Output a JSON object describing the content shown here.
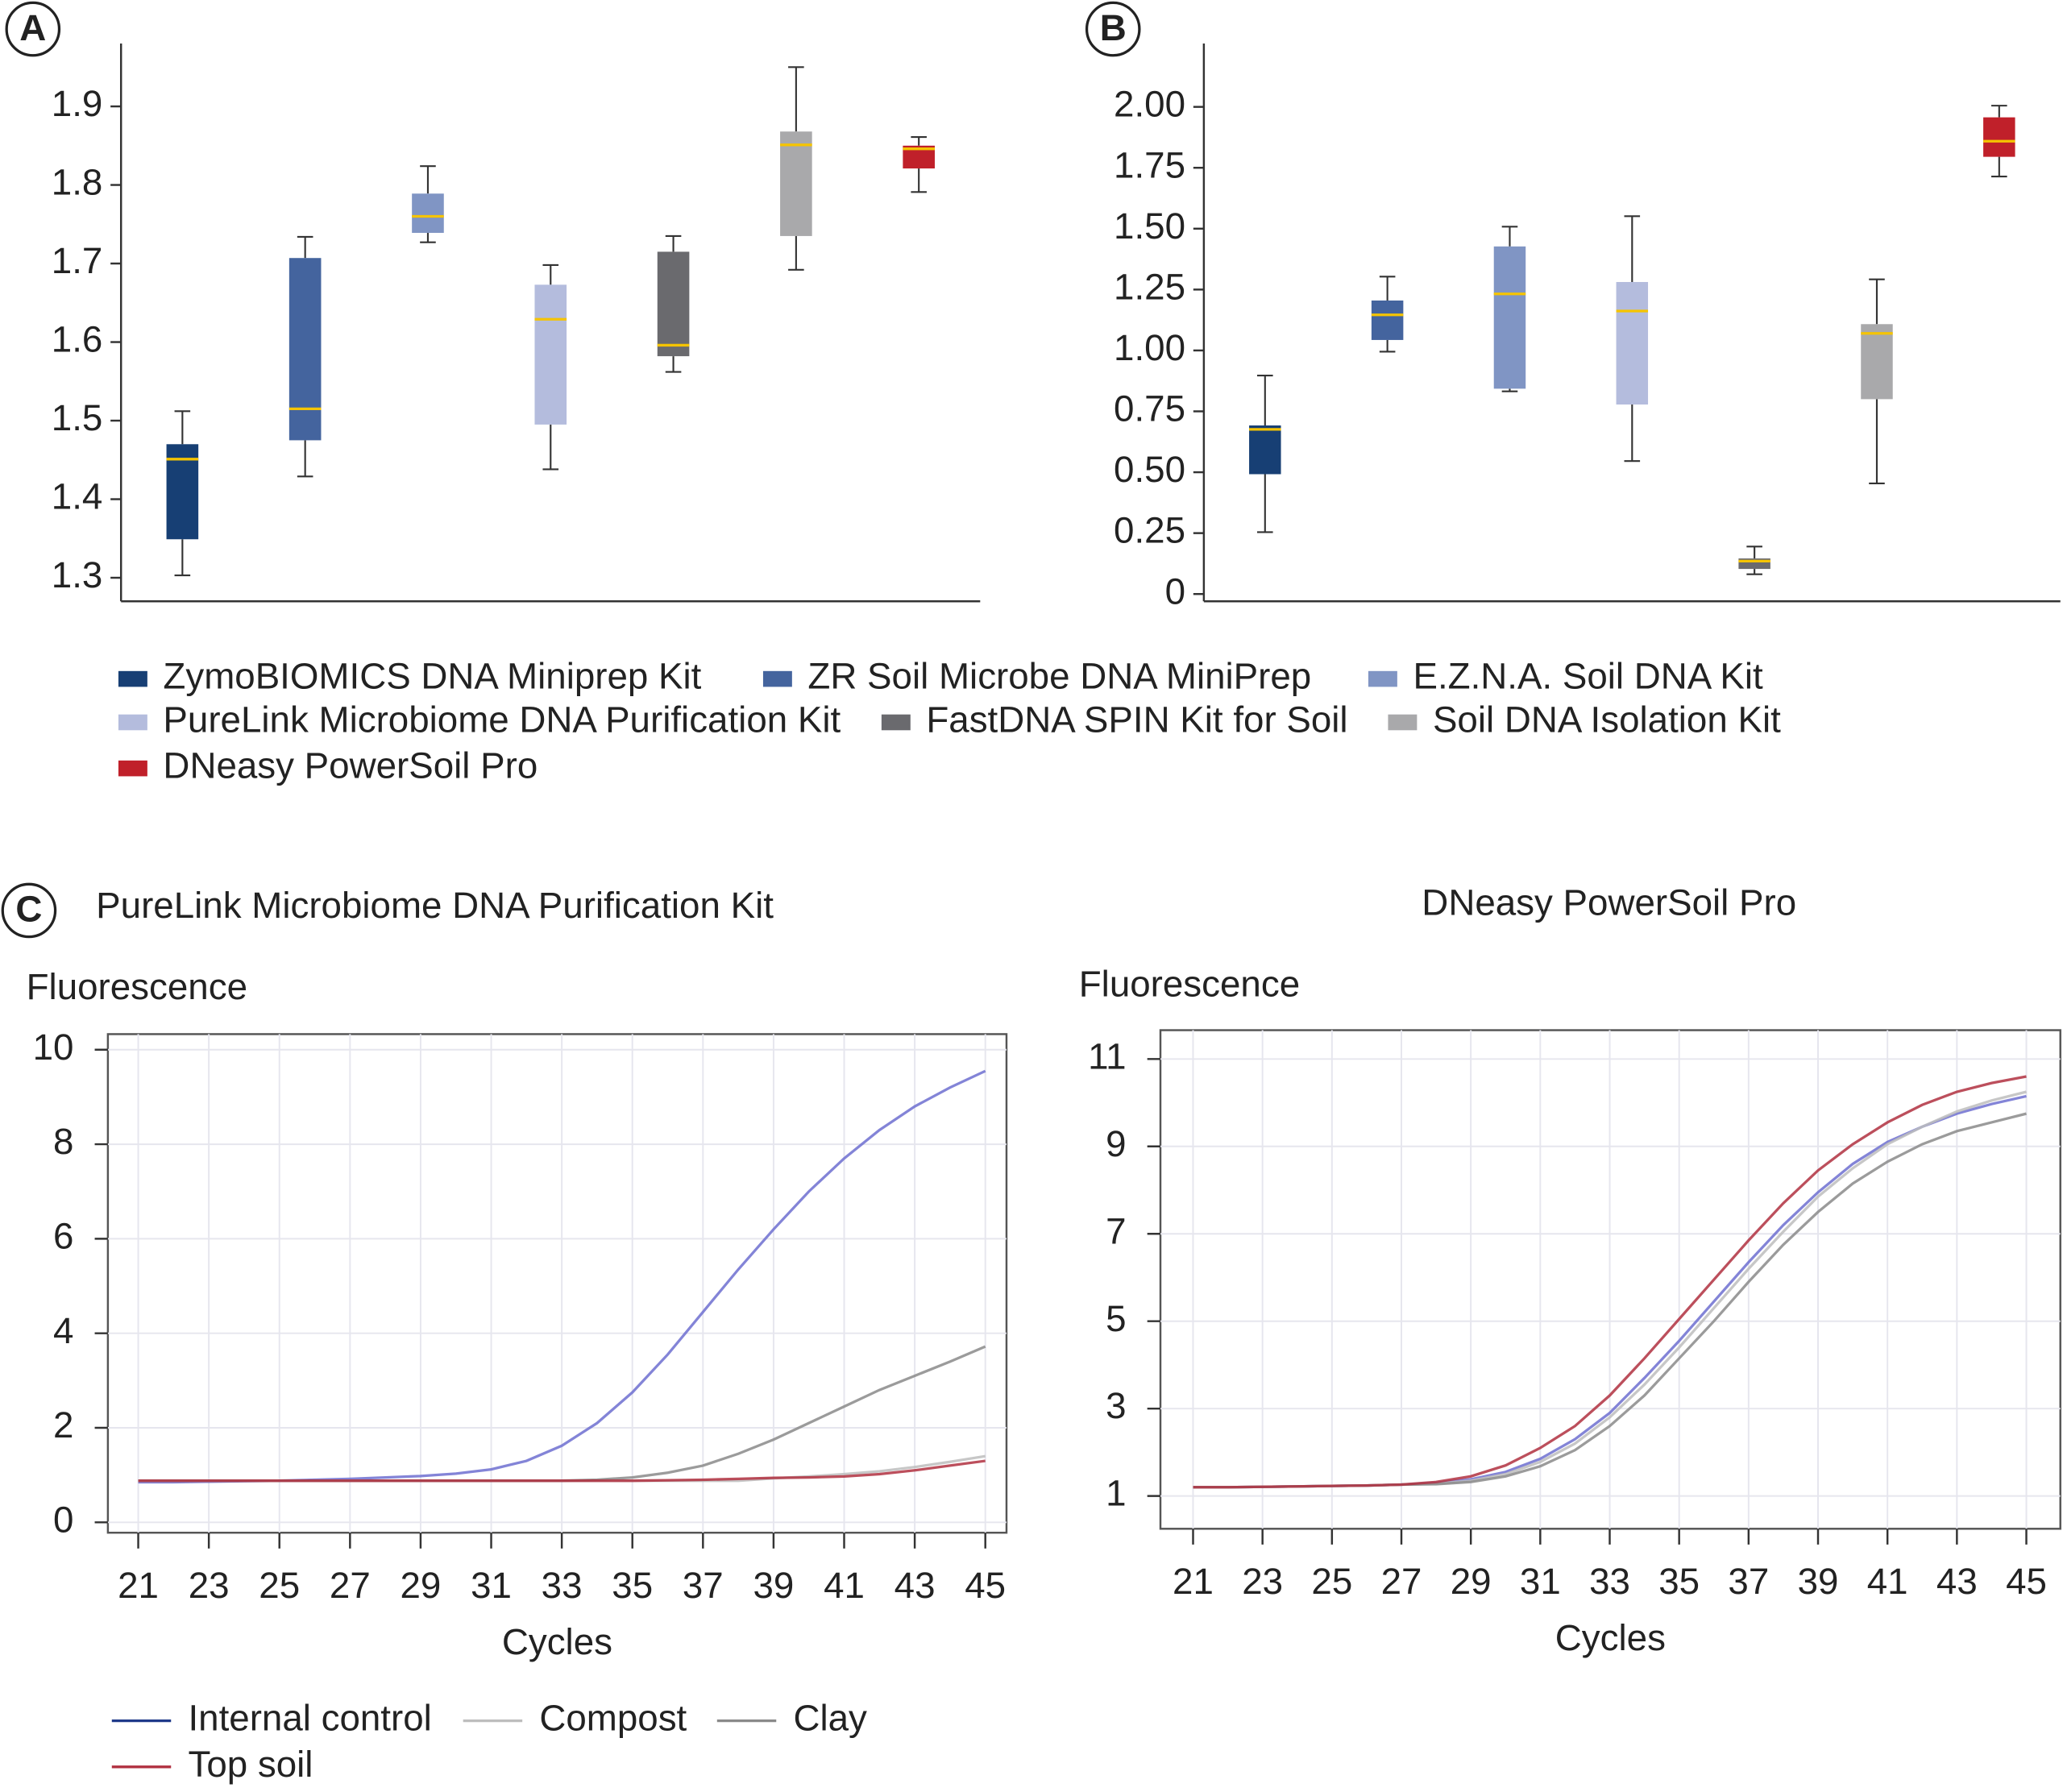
{
  "chart_data": [
    {
      "type": "box",
      "panel": "A",
      "ylim": [
        1.27,
        1.98
      ],
      "yticks": [
        1.3,
        1.4,
        1.5,
        1.6,
        1.7,
        1.8,
        1.9
      ],
      "median_color": "#f5c400",
      "series": [
        {
          "name": "ZymoBIOMICS DNA Miniprep Kit",
          "color": "#173f74",
          "min": 1.303,
          "q1": 1.349,
          "median": 1.451,
          "q3": 1.47,
          "max": 1.512
        },
        {
          "name": "ZR Soil Microbe DNA MiniPrep",
          "color": "#44649e",
          "min": 1.429,
          "q1": 1.475,
          "median": 1.515,
          "q3": 1.707,
          "max": 1.734
        },
        {
          "name": "E.Z.N.A. Soil DNA Kit",
          "color": "#8095c4",
          "min": 1.727,
          "q1": 1.739,
          "median": 1.76,
          "q3": 1.789,
          "max": 1.824
        },
        {
          "name": "PureLink Microbiome DNA Purification Kit",
          "color": "#b4bcdd",
          "min": 1.438,
          "q1": 1.495,
          "median": 1.629,
          "q3": 1.673,
          "max": 1.698
        },
        {
          "name": "FastDNA SPIN Kit for Soil",
          "color": "#6a6a6e",
          "min": 1.562,
          "q1": 1.582,
          "median": 1.596,
          "q3": 1.715,
          "max": 1.735
        },
        {
          "name": "Soil DNA Isolation Kit",
          "color": "#a9a9ab",
          "min": 1.692,
          "q1": 1.735,
          "median": 1.851,
          "q3": 1.868,
          "max": 1.95
        },
        {
          "name": "DNeasy PowerSoil Pro",
          "color": "#c0202a",
          "min": 1.791,
          "q1": 1.821,
          "median": 1.846,
          "q3": 1.85,
          "max": 1.861
        }
      ]
    },
    {
      "type": "box",
      "panel": "B",
      "ylim": [
        -0.03,
        2.26
      ],
      "yticks": [
        0,
        0.25,
        {
          "value": 0.5,
          "label": "0.50"
        },
        0.75,
        {
          "value": 1,
          "label": "1.00"
        },
        1.25,
        {
          "value": 1.5,
          "label": "1.50"
        },
        1.75,
        {
          "value": 2,
          "label": "2.00"
        }
      ],
      "median_color": "#f5c400",
      "series": [
        {
          "color": "#173f74",
          "min": 0.254,
          "q1": 0.492,
          "median": 0.676,
          "q3": 0.692,
          "max": 0.897
        },
        {
          "color": "#44649e",
          "min": 0.995,
          "q1": 1.043,
          "median": 1.146,
          "q3": 1.205,
          "max": 1.303
        },
        {
          "color": "#8095c4",
          "min": 0.832,
          "q1": 0.843,
          "median": 1.232,
          "q3": 1.427,
          "max": 1.508
        },
        {
          "color": "#b4bcdd",
          "min": 0.546,
          "q1": 0.778,
          "median": 1.162,
          "q3": 1.281,
          "max": 1.551
        },
        {
          "color": "#6a6a6e",
          "min": 0.081,
          "q1": 0.103,
          "median": 0.135,
          "q3": 0.146,
          "max": 0.195
        },
        {
          "color": "#a9a9ab",
          "min": 0.454,
          "q1": 0.8,
          "median": 1.07,
          "q3": 1.108,
          "max": 1.292
        },
        {
          "color": "#c0202a",
          "min": 1.714,
          "q1": 1.795,
          "median": 1.859,
          "q3": 1.957,
          "max": 2.005
        }
      ]
    },
    {
      "type": "line",
      "panel": "C",
      "title": "PureLink Microbiome DNA Purification Kit",
      "ylabel": "Fluorescence",
      "xlabel": "Cycles",
      "xlim": [
        20.14,
        45.6
      ],
      "ylim": [
        -0.22,
        10.33
      ],
      "xticks": [
        21,
        23,
        25,
        27,
        29,
        31,
        33,
        35,
        37,
        39,
        41,
        43,
        45
      ],
      "yticks": [
        0,
        2,
        4,
        6,
        8,
        10
      ],
      "grid": true,
      "x": [
        21,
        22,
        23,
        24,
        25,
        26,
        27,
        28,
        29,
        30,
        31,
        32,
        33,
        34,
        35,
        36,
        37,
        38,
        39,
        40,
        41,
        42,
        43,
        44,
        45
      ],
      "series": [
        {
          "name": "Internal control",
          "color": "#6d6fd0",
          "values": [
            0.85,
            0.85,
            0.86,
            0.87,
            0.88,
            0.9,
            0.92,
            0.95,
            0.98,
            1.03,
            1.12,
            1.3,
            1.62,
            2.1,
            2.75,
            3.55,
            4.45,
            5.35,
            6.2,
            7.0,
            7.7,
            8.3,
            8.8,
            9.2,
            9.55
          ]
        },
        {
          "name": "Compost",
          "color": "#bdbdbd",
          "values": [
            0.88,
            0.88,
            0.88,
            0.88,
            0.88,
            0.88,
            0.88,
            0.88,
            0.88,
            0.88,
            0.88,
            0.88,
            0.88,
            0.88,
            0.88,
            0.88,
            0.88,
            0.88,
            0.93,
            0.97,
            1.02,
            1.08,
            1.17,
            1.28,
            1.4
          ]
        },
        {
          "name": "Clay",
          "color": "#8a8a8a",
          "values": [
            0.88,
            0.88,
            0.88,
            0.88,
            0.88,
            0.88,
            0.88,
            0.88,
            0.88,
            0.88,
            0.88,
            0.88,
            0.88,
            0.9,
            0.95,
            1.05,
            1.2,
            1.45,
            1.75,
            2.1,
            2.45,
            2.8,
            3.1,
            3.4,
            3.72
          ]
        },
        {
          "name": "Top soil",
          "color": "#b03040",
          "values": [
            0.88,
            0.88,
            0.88,
            0.88,
            0.88,
            0.88,
            0.88,
            0.88,
            0.88,
            0.88,
            0.88,
            0.88,
            0.88,
            0.88,
            0.88,
            0.89,
            0.9,
            0.92,
            0.94,
            0.95,
            0.97,
            1.02,
            1.1,
            1.2,
            1.3
          ]
        }
      ]
    },
    {
      "type": "line",
      "title": "DNeasy PowerSoil Pro",
      "ylabel": "Fluorescence",
      "xlabel": "Cycles",
      "xlim": [
        20.06,
        45.98
      ],
      "ylim": [
        0.25,
        11.66
      ],
      "xticks": [
        21,
        23,
        25,
        27,
        29,
        31,
        33,
        35,
        37,
        39,
        41,
        43,
        45
      ],
      "yticks": [
        1,
        3,
        5,
        7,
        9,
        11
      ],
      "grid": true,
      "x": [
        21,
        22,
        23,
        24,
        25,
        26,
        27,
        28,
        29,
        30,
        31,
        32,
        33,
        34,
        35,
        36,
        37,
        38,
        39,
        40,
        41,
        42,
        43,
        44,
        45
      ],
      "series": [
        {
          "color": "#6d6fd0",
          "values": [
            1.2,
            1.2,
            1.21,
            1.22,
            1.23,
            1.24,
            1.26,
            1.3,
            1.38,
            1.55,
            1.85,
            2.3,
            2.9,
            3.7,
            4.55,
            5.45,
            6.35,
            7.2,
            7.95,
            8.6,
            9.1,
            9.45,
            9.75,
            9.97,
            10.15
          ]
        },
        {
          "color": "#bdbdbd",
          "values": [
            1.2,
            1.2,
            1.21,
            1.22,
            1.23,
            1.24,
            1.26,
            1.28,
            1.35,
            1.5,
            1.78,
            2.2,
            2.8,
            3.55,
            4.4,
            5.3,
            6.2,
            7.05,
            7.85,
            8.5,
            9.05,
            9.45,
            9.8,
            10.05,
            10.25
          ]
        },
        {
          "color": "#8a8a8a",
          "values": [
            1.2,
            1.2,
            1.21,
            1.22,
            1.23,
            1.24,
            1.26,
            1.27,
            1.32,
            1.45,
            1.68,
            2.05,
            2.6,
            3.3,
            4.15,
            5.0,
            5.9,
            6.75,
            7.5,
            8.15,
            8.65,
            9.05,
            9.35,
            9.55,
            9.75
          ]
        },
        {
          "color": "#b03040",
          "values": [
            1.2,
            1.2,
            1.21,
            1.22,
            1.23,
            1.24,
            1.26,
            1.32,
            1.45,
            1.7,
            2.1,
            2.6,
            3.3,
            4.15,
            5.05,
            5.95,
            6.85,
            7.7,
            8.45,
            9.05,
            9.55,
            9.95,
            10.25,
            10.45,
            10.6
          ]
        }
      ]
    }
  ]
}
